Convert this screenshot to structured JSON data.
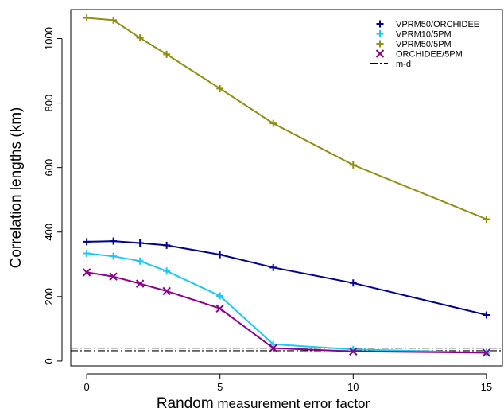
{
  "chart_data": {
    "type": "line",
    "xlabel_main": "Random",
    "xlabel_rest": " measurement error factor",
    "ylabel": "Correlation lengths (km)",
    "xlim": [
      -0.6,
      15.6
    ],
    "ylim": [
      -15,
      1090
    ],
    "xticks": [
      0,
      5,
      10,
      15
    ],
    "yticks": [
      0,
      200,
      400,
      600,
      800,
      1000
    ],
    "x": [
      0,
      1,
      2,
      3,
      5,
      7,
      10,
      15
    ],
    "series": [
      {
        "name": "VPRM50/ORCHIDEE",
        "color": "#00008B",
        "marker": "plus",
        "values": [
          370,
          372,
          366,
          359,
          330,
          290,
          242,
          143
        ]
      },
      {
        "name": "VPRM10/5PM",
        "color": "#1EC8F0",
        "marker": "plus",
        "values": [
          334,
          325,
          310,
          279,
          202,
          52,
          36,
          26
        ]
      },
      {
        "name": "VPRM50/5PM",
        "color": "#8E8E14",
        "marker": "plus",
        "values": [
          1064,
          1057,
          1002,
          951,
          845,
          737,
          608,
          440
        ]
      },
      {
        "name": "ORCHIDEE/5PM",
        "color": "#8B008B",
        "marker": "x",
        "values": [
          275,
          262,
          240,
          217,
          163,
          40,
          30,
          26
        ]
      }
    ],
    "reference_lines": {
      "name": "m-d",
      "color": "#000000",
      "style": "dashdot",
      "values": [
        40,
        32
      ]
    },
    "legend_position": "top-right",
    "grid": false
  }
}
